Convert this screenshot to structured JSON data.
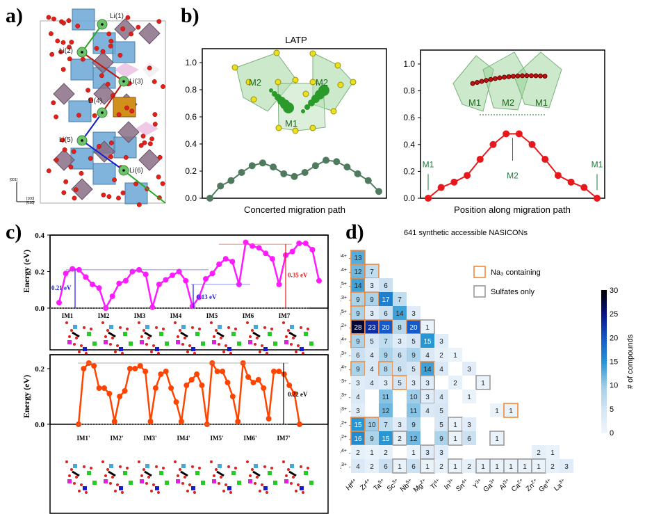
{
  "panels": {
    "a": {
      "label": "a)",
      "sites": [
        "Li(1)",
        "Li(2)",
        "Li(3)",
        "Li(4)",
        "Li(5)",
        "Li(6)"
      ],
      "axes_labels": [
        "[001]",
        "[100]",
        "[010]"
      ]
    },
    "b": {
      "label": "b)",
      "title": "LATP"
    },
    "c": {
      "label": "c)"
    },
    "d": {
      "label": "d)"
    }
  },
  "chart_data": [
    {
      "id": "b-left",
      "type": "line",
      "title": "LATP",
      "xlabel": "Concerted migration path",
      "ylabel": "",
      "ylim": [
        0,
        1.0
      ],
      "yticks": [
        "0.0",
        "0.2",
        "0.4",
        "0.6",
        "0.8",
        "1.0"
      ],
      "color": "#4f7a5e",
      "inset_labels": [
        "M2",
        "M2",
        "M1"
      ],
      "values": [
        0.0,
        0.09,
        0.13,
        0.19,
        0.24,
        0.26,
        0.23,
        0.18,
        0.16,
        0.19,
        0.24,
        0.28,
        0.27,
        0.23,
        0.18,
        0.13,
        0.05
      ]
    },
    {
      "id": "b-right",
      "type": "line",
      "xlabel": "Position along migration path",
      "ylabel": "",
      "ylim": [
        0,
        1.0
      ],
      "yticks": [
        "0.0",
        "0.2",
        "0.4",
        "0.6",
        "0.8",
        "1.0"
      ],
      "color": "#e8171b",
      "inset_labels": [
        "M1",
        "M2",
        "M1"
      ],
      "annotations": [
        "M1",
        "M2",
        "M1"
      ],
      "values": [
        0.0,
        0.08,
        0.12,
        0.17,
        0.29,
        0.4,
        0.48,
        0.48,
        0.4,
        0.29,
        0.17,
        0.12,
        0.08,
        0.0
      ]
    },
    {
      "id": "c-top",
      "type": "line",
      "ylabel": "Energy (eV)",
      "ylim": [
        0,
        0.4
      ],
      "yticks": [
        "0.0",
        "0.2",
        "0.4"
      ],
      "color": "#ff1aff",
      "categories": [
        "IM1",
        "IM2",
        "IM3",
        "IM4",
        "IM5",
        "IM6",
        "IM7"
      ],
      "annotations": [
        {
          "text": "0.21 eV",
          "color": "#1a1ae6",
          "value": 0.21
        },
        {
          "text": "0.13 eV",
          "color": "#1a1ae6",
          "value": 0.13
        },
        {
          "text": "0.35 eV",
          "color": "#e61a1a",
          "value": 0.35
        }
      ],
      "values": [
        0.03,
        0.19,
        0.215,
        0.21,
        0.17,
        0.13,
        0.11,
        0.0,
        0.065,
        0.135,
        0.15,
        0.2,
        0.21,
        0.185,
        0.005,
        0.13,
        0.155,
        0.18,
        0.2,
        0.15,
        0.01,
        0.06,
        0.16,
        0.19,
        0.24,
        0.27,
        0.255,
        0.13,
        0.36,
        0.34,
        0.33,
        0.3,
        0.27,
        0.13,
        0.29,
        0.31,
        0.355,
        0.355,
        0.32,
        0.15
      ]
    },
    {
      "id": "c-bottom",
      "type": "line",
      "ylabel": "Energy (eV)",
      "ylim": [
        0,
        0.25
      ],
      "yticks": [
        "0.0",
        "0.2"
      ],
      "color": "#ff4400",
      "categories": [
        "IM1'",
        "IM2'",
        "IM3'",
        "IM4'",
        "IM5'",
        "IM6'",
        "IM7'"
      ],
      "annotations": [
        {
          "text": "0.22 eV",
          "color": "#000000",
          "value": 0.22
        }
      ],
      "values": [
        0.0,
        0.2,
        0.22,
        0.21,
        0.13,
        0.13,
        0.11,
        0.01,
        0.1,
        0.12,
        0.2,
        0.2,
        0.21,
        0.19,
        0.01,
        0.13,
        0.18,
        0.19,
        0.13,
        0.08,
        0.01,
        0.14,
        0.16,
        0.18,
        0.14,
        0.0,
        0.22,
        0.19,
        0.19,
        0.15,
        0.1,
        0.01,
        0.22,
        0.17,
        0.15,
        0.16,
        0.13,
        0.02,
        0.19,
        0.19,
        0.18,
        0.14,
        0.11,
        0.0
      ]
    },
    {
      "id": "d",
      "type": "heatmap",
      "title": "641 synthetic accessible NASICONs",
      "rows": [
        "Hf4+",
        "Zr4+",
        "Ta5+",
        "Sc3+",
        "Nb5+",
        "Mg2+",
        "Ti4+",
        "In3+",
        "Sn4+",
        "Y3+",
        "Ga3+",
        "Al3+",
        "Ca2+",
        "Zn2+",
        "Ge4+",
        "La3+"
      ],
      "row_labels": [
        [
          "Hf",
          "4+"
        ],
        [
          "Zr",
          "4+"
        ],
        [
          "Ta",
          "5+"
        ],
        [
          "Sc",
          "3+"
        ],
        [
          "Nb",
          "5+"
        ],
        [
          "Mg",
          "2+"
        ],
        [
          "Ti",
          "4+"
        ],
        [
          "In",
          "3+"
        ],
        [
          "Sn",
          "4+"
        ],
        [
          "Y",
          "3+"
        ],
        [
          "Ga",
          "3+"
        ],
        [
          "Al",
          "3+"
        ],
        [
          "Ca",
          "2+"
        ],
        [
          "Zn",
          "2+"
        ],
        [
          "Ge",
          "4+"
        ],
        [
          "La",
          "3+"
        ]
      ],
      "columns": [
        "Hf4+",
        "Zr4+",
        "Ta5+",
        "Sc3+",
        "Nb5+",
        "Mg2+",
        "Ti4+",
        "In3+",
        "Sn4+",
        "Y3+",
        "Ga3+",
        "Al3+",
        "Ca2+",
        "Zn2+",
        "Ge4+",
        "La3+"
      ],
      "values": [
        [
          13,
          null,
          null,
          null,
          null,
          null,
          null,
          null,
          null,
          null,
          null,
          null,
          null,
          null,
          null,
          null
        ],
        [
          12,
          7,
          null,
          null,
          null,
          null,
          null,
          null,
          null,
          null,
          null,
          null,
          null,
          null,
          null,
          null
        ],
        [
          14,
          3,
          6,
          null,
          null,
          null,
          null,
          null,
          null,
          null,
          null,
          null,
          null,
          null,
          null,
          null
        ],
        [
          9,
          9,
          17,
          7,
          null,
          null,
          null,
          null,
          null,
          null,
          null,
          null,
          null,
          null,
          null,
          null
        ],
        [
          9,
          3,
          6,
          14,
          3,
          null,
          null,
          null,
          null,
          null,
          null,
          null,
          null,
          null,
          null,
          null
        ],
        [
          28,
          23,
          20,
          8,
          20,
          1,
          null,
          null,
          null,
          null,
          null,
          null,
          null,
          null,
          null,
          null
        ],
        [
          9,
          5,
          7,
          3,
          5,
          15,
          3,
          null,
          null,
          null,
          null,
          null,
          null,
          null,
          null,
          null
        ],
        [
          6,
          4,
          9,
          6,
          9,
          4,
          2,
          1,
          null,
          null,
          null,
          null,
          null,
          null,
          null,
          null
        ],
        [
          9,
          4,
          8,
          6,
          5,
          14,
          4,
          null,
          3,
          null,
          null,
          null,
          null,
          null,
          null,
          null
        ],
        [
          3,
          4,
          3,
          5,
          3,
          3,
          null,
          2,
          null,
          1,
          null,
          null,
          null,
          null,
          null,
          null
        ],
        [
          4,
          null,
          11,
          null,
          10,
          3,
          4,
          null,
          1,
          null,
          null,
          null,
          null,
          null,
          null,
          null
        ],
        [
          3,
          null,
          12,
          null,
          11,
          4,
          5,
          null,
          null,
          null,
          1,
          1,
          null,
          null,
          null,
          null
        ],
        [
          15,
          10,
          7,
          3,
          9,
          null,
          5,
          1,
          3,
          null,
          null,
          null,
          null,
          null,
          null,
          null
        ],
        [
          16,
          9,
          15,
          2,
          12,
          null,
          9,
          1,
          6,
          null,
          1,
          null,
          null,
          null,
          null,
          null
        ],
        [
          2,
          1,
          2,
          null,
          1,
          3,
          3,
          null,
          null,
          null,
          null,
          null,
          null,
          2,
          1,
          null
        ],
        [
          4,
          2,
          6,
          1,
          6,
          1,
          2,
          1,
          2,
          1,
          1,
          1,
          1,
          1,
          2,
          3
        ]
      ],
      "na3_containing": [
        [
          0,
          0
        ],
        [
          1,
          0
        ],
        [
          1,
          1
        ],
        [
          2,
          0
        ],
        [
          3,
          0
        ],
        [
          3,
          1
        ],
        [
          4,
          0
        ],
        [
          5,
          0
        ],
        [
          5,
          1
        ],
        [
          5,
          2
        ],
        [
          5,
          4
        ],
        [
          6,
          0
        ],
        [
          8,
          0
        ],
        [
          8,
          2
        ],
        [
          8,
          5
        ],
        [
          9,
          3
        ],
        [
          11,
          11
        ],
        [
          12,
          0
        ],
        [
          12,
          1
        ],
        [
          13,
          0
        ]
      ],
      "sulfates_only": [
        [
          5,
          5
        ],
        [
          9,
          5
        ],
        [
          9,
          9
        ],
        [
          10,
          5
        ],
        [
          12,
          7
        ],
        [
          13,
          3
        ],
        [
          13,
          7
        ],
        [
          13,
          10
        ],
        [
          14,
          5
        ],
        [
          15,
          3
        ],
        [
          15,
          5
        ],
        [
          15,
          7
        ],
        [
          15,
          9
        ],
        [
          15,
          10
        ],
        [
          15,
          11
        ],
        [
          15,
          12
        ],
        [
          15,
          13
        ]
      ],
      "legend": [
        {
          "label": "Na₃ containing",
          "color": "#f08a3c"
        },
        {
          "label": "Sulfates only",
          "color": "#999999"
        }
      ],
      "colorbar": {
        "label": "# of compounds",
        "range": [
          0,
          30
        ],
        "ticks": [
          "0",
          "5",
          "10",
          "15",
          "20",
          "25",
          "30"
        ]
      }
    }
  ]
}
